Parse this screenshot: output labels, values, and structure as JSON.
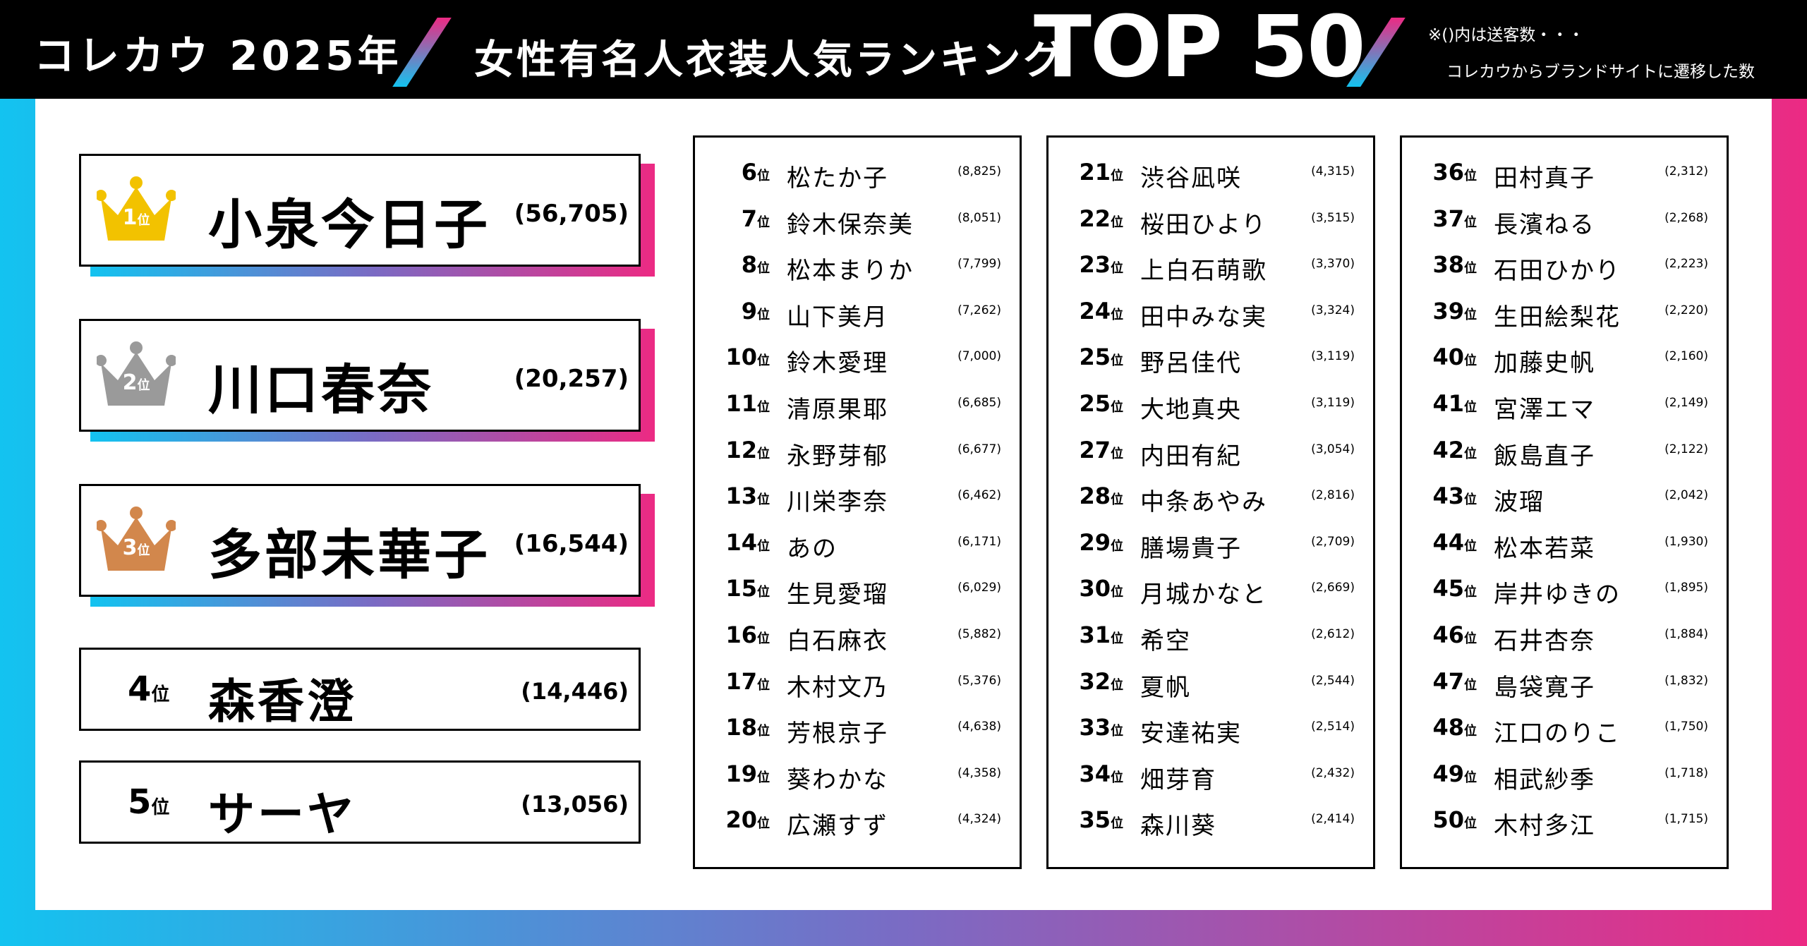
{
  "header": {
    "brand": "コレカウ 2025年",
    "headline": "女性有名人衣装人気ランキング",
    "top_label": "TOP 50",
    "note_line1": "※()内は送客数・・・",
    "note_line2": "コレカウからブランドサイトに遷移した数"
  },
  "colors": {
    "gold": "#F2C200",
    "silver": "#9A9A9A",
    "bronze": "#D2874C",
    "gradient_left": "#13C3F0",
    "gradient_right": "#EC2A83"
  },
  "rank_suffix": "位",
  "top3": [
    {
      "rank": "1",
      "name": "小泉今日子",
      "count": "(56,705)",
      "crown": "gold-crown-icon"
    },
    {
      "rank": "2",
      "name": "川口春奈",
      "count": "(20,257)",
      "crown": "silver-crown-icon"
    },
    {
      "rank": "3",
      "name": "多部未華子",
      "count": "(16,544)",
      "crown": "bronze-crown-icon"
    }
  ],
  "ranks45": [
    {
      "rank": "4",
      "name": "森香澄",
      "count": "(14,446)"
    },
    {
      "rank": "5",
      "name": "サーヤ",
      "count": "(13,056)"
    }
  ],
  "columns": [
    [
      {
        "rank": "6",
        "name": "松たか子",
        "count": "(8,825)"
      },
      {
        "rank": "7",
        "name": "鈴木保奈美",
        "count": "(8,051)"
      },
      {
        "rank": "8",
        "name": "松本まりか",
        "count": "(7,799)"
      },
      {
        "rank": "9",
        "name": "山下美月",
        "count": "(7,262)"
      },
      {
        "rank": "10",
        "name": "鈴木愛理",
        "count": "(7,000)"
      },
      {
        "rank": "11",
        "name": "清原果耶",
        "count": "(6,685)"
      },
      {
        "rank": "12",
        "name": "永野芽郁",
        "count": "(6,677)"
      },
      {
        "rank": "13",
        "name": "川栄李奈",
        "count": "(6,462)"
      },
      {
        "rank": "14",
        "name": "あの",
        "count": "(6,171)"
      },
      {
        "rank": "15",
        "name": "生見愛瑠",
        "count": "(6,029)"
      },
      {
        "rank": "16",
        "name": "白石麻衣",
        "count": "(5,882)"
      },
      {
        "rank": "17",
        "name": "木村文乃",
        "count": "(5,376)"
      },
      {
        "rank": "18",
        "name": "芳根京子",
        "count": "(4,638)"
      },
      {
        "rank": "19",
        "name": "葵わかな",
        "count": "(4,358)"
      },
      {
        "rank": "20",
        "name": "広瀬すず",
        "count": "(4,324)"
      }
    ],
    [
      {
        "rank": "21",
        "name": "渋谷凪咲",
        "count": "(4,315)"
      },
      {
        "rank": "22",
        "name": "桜田ひより",
        "count": "(3,515)"
      },
      {
        "rank": "23",
        "name": "上白石萌歌",
        "count": "(3,370)"
      },
      {
        "rank": "24",
        "name": "田中みな実",
        "count": "(3,324)"
      },
      {
        "rank": "25",
        "name": "野呂佳代",
        "count": "(3,119)"
      },
      {
        "rank": "25",
        "name": "大地真央",
        "count": "(3,119)"
      },
      {
        "rank": "27",
        "name": "内田有紀",
        "count": "(3,054)"
      },
      {
        "rank": "28",
        "name": "中条あやみ",
        "count": "(2,816)"
      },
      {
        "rank": "29",
        "name": "膳場貴子",
        "count": "(2,709)"
      },
      {
        "rank": "30",
        "name": "月城かなと",
        "count": "(2,669)"
      },
      {
        "rank": "31",
        "name": "希空",
        "count": "(2,612)"
      },
      {
        "rank": "32",
        "name": "夏帆",
        "count": "(2,544)"
      },
      {
        "rank": "33",
        "name": "安達祐実",
        "count": "(2,514)"
      },
      {
        "rank": "34",
        "name": "畑芽育",
        "count": "(2,432)"
      },
      {
        "rank": "35",
        "name": "森川葵",
        "count": "(2,414)"
      }
    ],
    [
      {
        "rank": "36",
        "name": "田村真子",
        "count": "(2,312)"
      },
      {
        "rank": "37",
        "name": "長濱ねる",
        "count": "(2,268)"
      },
      {
        "rank": "38",
        "name": "石田ひかり",
        "count": "(2,223)"
      },
      {
        "rank": "39",
        "name": "生田絵梨花",
        "count": "(2,220)"
      },
      {
        "rank": "40",
        "name": "加藤史帆",
        "count": "(2,160)"
      },
      {
        "rank": "41",
        "name": "宮澤エマ",
        "count": "(2,149)"
      },
      {
        "rank": "42",
        "name": "飯島直子",
        "count": "(2,122)"
      },
      {
        "rank": "43",
        "name": "波瑠",
        "count": "(2,042)"
      },
      {
        "rank": "44",
        "name": "松本若菜",
        "count": "(1,930)"
      },
      {
        "rank": "45",
        "name": "岸井ゆきの",
        "count": "(1,895)"
      },
      {
        "rank": "46",
        "name": "石井杏奈",
        "count": "(1,884)"
      },
      {
        "rank": "47",
        "name": "島袋寛子",
        "count": "(1,832)"
      },
      {
        "rank": "48",
        "name": "江口のりこ",
        "count": "(1,750)"
      },
      {
        "rank": "49",
        "name": "相武紗季",
        "count": "(1,718)"
      },
      {
        "rank": "50",
        "name": "木村多江",
        "count": "(1,715)"
      }
    ]
  ]
}
